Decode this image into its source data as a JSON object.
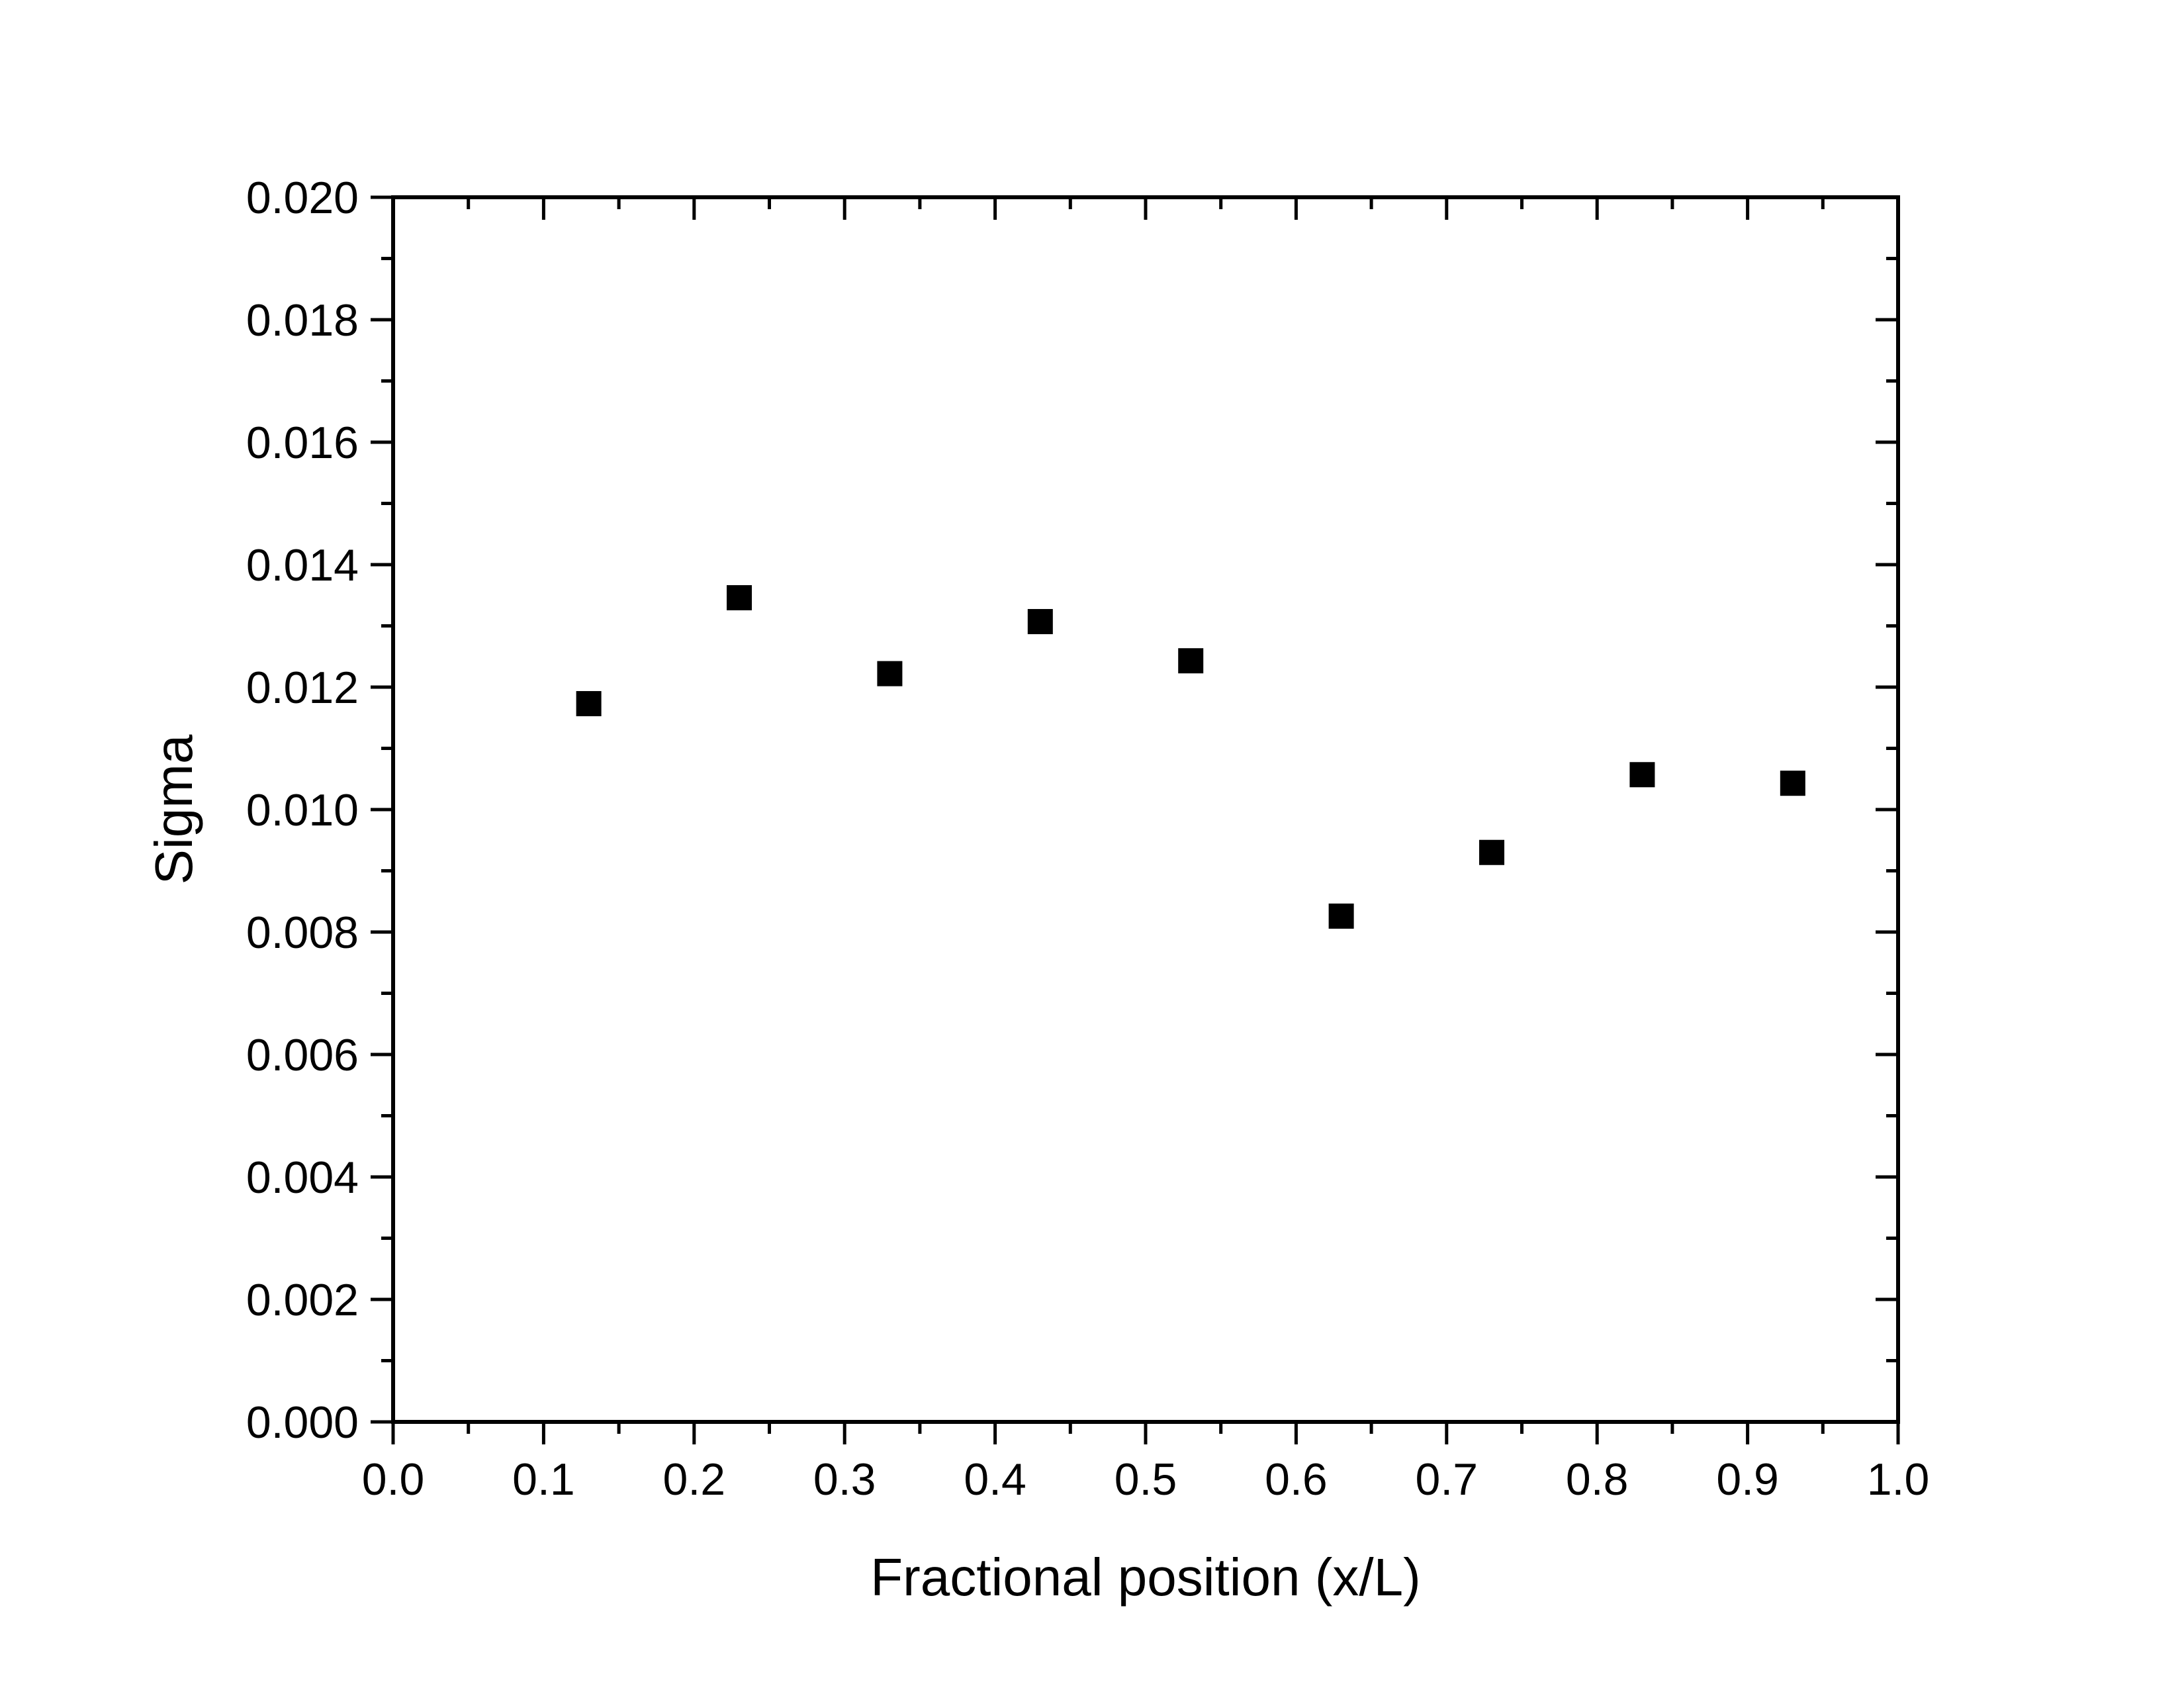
{
  "chart_data": {
    "type": "scatter",
    "title": "",
    "xlabel": "Fractional position (x/L)",
    "ylabel": "Sigma",
    "xlim": [
      0.0,
      1.0
    ],
    "ylim": [
      0.0,
      0.02
    ],
    "x_ticks": [
      "0.0",
      "0.1",
      "0.2",
      "0.3",
      "0.4",
      "0.5",
      "0.6",
      "0.7",
      "0.8",
      "0.9",
      "1.0"
    ],
    "y_ticks": [
      "0.000",
      "0.002",
      "0.004",
      "0.006",
      "0.008",
      "0.010",
      "0.012",
      "0.014",
      "0.016",
      "0.018",
      "0.020"
    ],
    "grid": false,
    "legend": "none",
    "marker": "square",
    "marker_color": "#000000",
    "series": [
      {
        "x": [
          0.13,
          0.23,
          0.33,
          0.43,
          0.53,
          0.63,
          0.73,
          0.83,
          0.93
        ],
        "y": [
          0.01173,
          0.01346,
          0.01222,
          0.01307,
          0.01243,
          0.00826,
          0.0093,
          0.01057,
          0.01043
        ]
      }
    ]
  }
}
